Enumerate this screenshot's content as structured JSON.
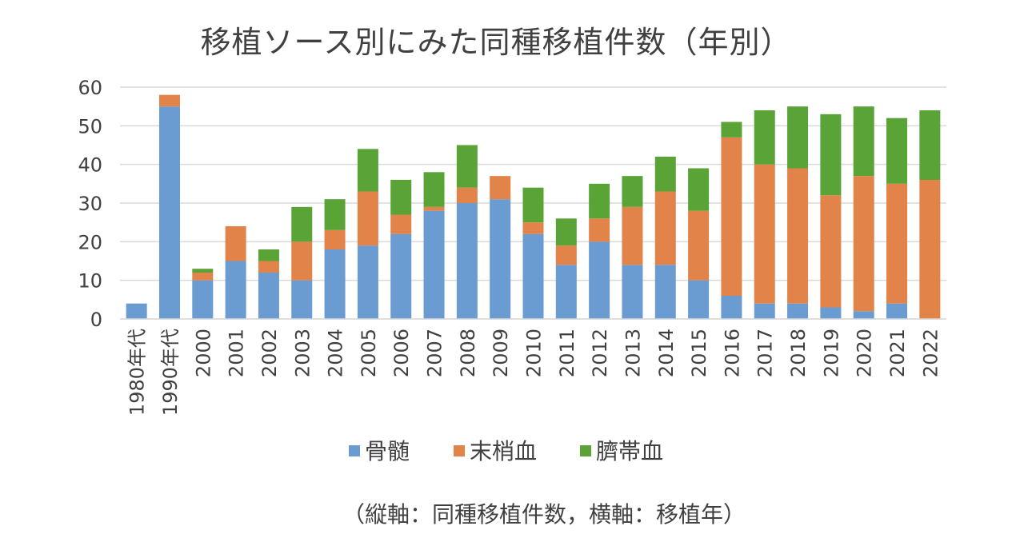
{
  "chart_data": {
    "type": "bar",
    "stacked": true,
    "title": "移植ソース別にみた同種移植件数（年別）",
    "note": "（縦軸：同種移植件数，横軸：移植年）",
    "categories": [
      "1980年代",
      "1990年代",
      "2000",
      "2001",
      "2002",
      "2003",
      "2004",
      "2005",
      "2006",
      "2007",
      "2008",
      "2009",
      "2010",
      "2011",
      "2012",
      "2013",
      "2014",
      "2015",
      "2016",
      "2017",
      "2018",
      "2019",
      "2020",
      "2021",
      "2022"
    ],
    "series": [
      {
        "name": "骨髄",
        "color": "#6a9bd1",
        "values": [
          4,
          55,
          10,
          15,
          12,
          10,
          18,
          19,
          22,
          28,
          30,
          31,
          22,
          14,
          20,
          14,
          14,
          10,
          6,
          4,
          4,
          3,
          2,
          4,
          0
        ]
      },
      {
        "name": "末梢血",
        "color": "#e2834a",
        "values": [
          0,
          3,
          2,
          9,
          3,
          10,
          5,
          14,
          5,
          1,
          4,
          6,
          3,
          5,
          6,
          15,
          19,
          18,
          41,
          36,
          35,
          29,
          35,
          31,
          36
        ]
      },
      {
        "name": "臍帯血",
        "color": "#5aa337",
        "values": [
          0,
          0,
          1,
          0,
          3,
          9,
          8,
          11,
          9,
          9,
          11,
          0,
          9,
          7,
          9,
          8,
          9,
          11,
          4,
          14,
          16,
          21,
          18,
          17,
          18
        ]
      }
    ],
    "ylim": [
      0,
      60
    ],
    "yticks": [
      0,
      10,
      20,
      30,
      40,
      50,
      60
    ],
    "grid": true,
    "legend": "bottom"
  }
}
